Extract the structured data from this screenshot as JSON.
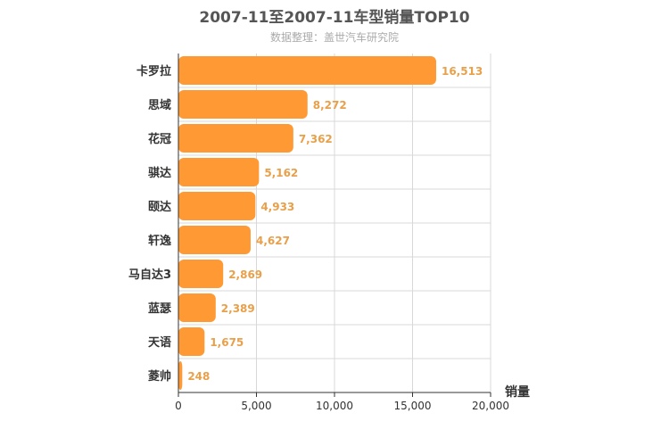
{
  "chart_data": {
    "type": "bar",
    "orientation": "horizontal",
    "title": "2007-11至2007-11车型销量TOP10",
    "subtitle": "数据整理：盖世汽车研究院",
    "categories": [
      "卡罗拉",
      "思域",
      "花冠",
      "骐达",
      "颐达",
      "轩逸",
      "马自达3",
      "蓝瑟",
      "天语",
      "菱帅"
    ],
    "values": [
      16513,
      8272,
      7362,
      5162,
      4933,
      4627,
      2869,
      2389,
      1675,
      248
    ],
    "value_labels": [
      "16,513",
      "8,272",
      "7,362",
      "5,162",
      "4,933",
      "4,627",
      "2,869",
      "2,389",
      "1,675",
      "248"
    ],
    "xlabel": "销量",
    "ylabel": "",
    "xlim": [
      0,
      20000
    ],
    "xticks": [
      0,
      5000,
      10000,
      15000,
      20000
    ],
    "xtick_labels": [
      "0",
      "5,000",
      "10,000",
      "15,000",
      "20,000"
    ],
    "grid": true,
    "colors": {
      "bar": "#ff9933",
      "label": "#e8a04a",
      "axis": "#333333",
      "grid": "#d8d8d8"
    }
  }
}
